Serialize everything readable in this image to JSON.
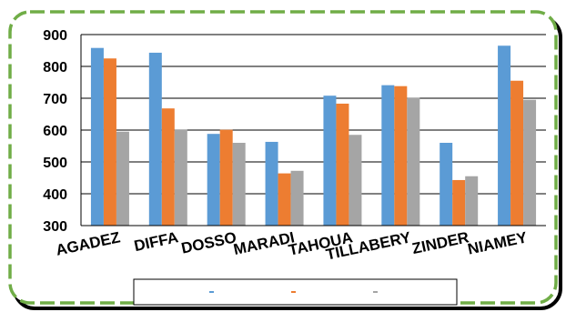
{
  "chart_data": {
    "type": "bar",
    "categories": [
      "AGADEZ",
      "DIFFA",
      "DOSSO",
      "MARADI",
      "TAHOUA",
      "TILLABERY",
      "ZINDER",
      "NIAMEY"
    ],
    "series": [
      {
        "values": [
          858,
          843,
          588,
          563,
          708,
          741,
          560,
          865
        ],
        "color": "#5b9bd5"
      },
      {
        "values": [
          825,
          668,
          601,
          464,
          683,
          738,
          443,
          755
        ],
        "color": "#ed7d31"
      },
      {
        "values": [
          595,
          601,
          560,
          472,
          585,
          701,
          455,
          695
        ],
        "color": "#a5a5a5"
      }
    ],
    "ylim": [
      300,
      900
    ],
    "yticks": [
      300,
      400,
      500,
      600,
      700,
      800,
      900
    ],
    "grid": true,
    "legend_position": "bottom",
    "frame_color": "#70ad47"
  }
}
